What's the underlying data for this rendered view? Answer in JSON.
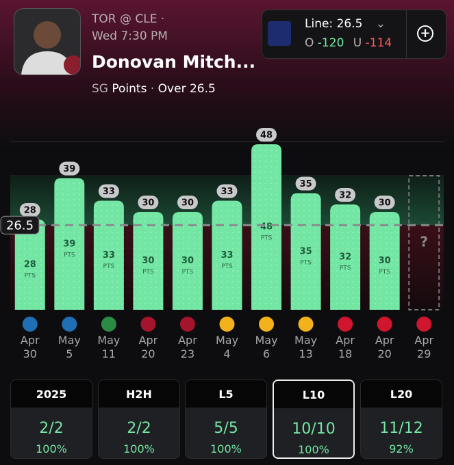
{
  "header": {
    "matchup": "TOR @ CLE",
    "time": "Wed 7:30 PM",
    "player": "Donovan Mitch...",
    "position": "SG",
    "stat": "Points",
    "side": "Over",
    "line": 26.5
  },
  "line_box": {
    "label": "Line:",
    "line": 26.5,
    "over_label": "O",
    "over_odds": -120,
    "under_label": "U",
    "under_odds": -114
  },
  "chart_data": {
    "type": "bar",
    "categories": [
      "Apr 30",
      "May 5",
      "May 11",
      "Apr 20",
      "Apr 23",
      "May 4",
      "May 6",
      "May 13",
      "Apr 18",
      "Apr 20",
      "Apr 29"
    ],
    "values": [
      28,
      39,
      33,
      30,
      30,
      33,
      48,
      35,
      32,
      30,
      null
    ],
    "unit_label": "PTS",
    "pending_label": "?",
    "threshold": 26.5,
    "color": "#74e6a4",
    "ylim": [
      4,
      50
    ]
  },
  "summary": [
    {
      "label": "2025",
      "record": "2/2",
      "pct": "100%"
    },
    {
      "label": "H2H",
      "record": "2/2",
      "pct": "100%"
    },
    {
      "label": "L5",
      "record": "5/5",
      "pct": "100%"
    },
    {
      "label": "L10",
      "record": "10/10",
      "pct": "100%",
      "selected": true
    },
    {
      "label": "L20",
      "record": "11/12",
      "pct": "92%"
    }
  ]
}
